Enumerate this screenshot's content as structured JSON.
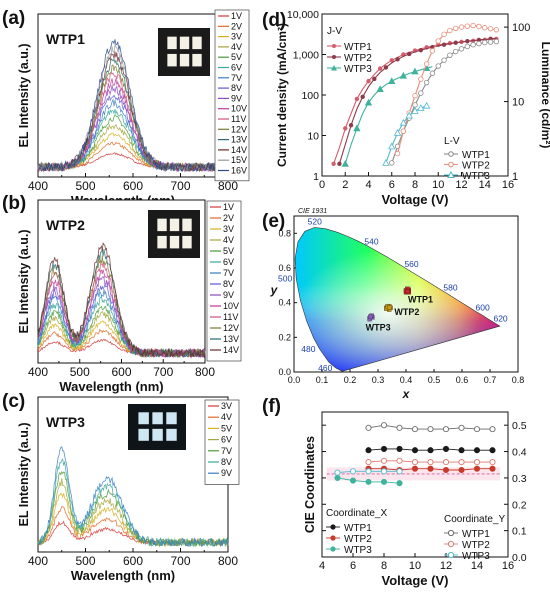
{
  "chart_data": [
    {
      "panel": "(a)",
      "name": "WTP1",
      "type": "line",
      "xlabel": "Wavelength (nm)",
      "ylabel": "EL Intensity (a.u.)",
      "xlim": [
        400,
        800
      ],
      "xticks": [
        400,
        500,
        600,
        700,
        800
      ],
      "series_names": [
        "1V",
        "2V",
        "3V",
        "4V",
        "5V",
        "6V",
        "7V",
        "8V",
        "9V",
        "10V",
        "11V",
        "12V",
        "13V",
        "14V",
        "15V",
        "16V"
      ],
      "peaks": [
        {
          "center": 560,
          "width": 48,
          "amp": 1.0
        }
      ],
      "has_inset_photo": true
    },
    {
      "panel": "(b)",
      "name": "WTP2",
      "type": "line",
      "xlabel": "Wavelength (nm)",
      "ylabel": "EL Intensity (a.u.)",
      "xlim": [
        400,
        800
      ],
      "xticks": [
        400,
        500,
        600,
        700,
        800
      ],
      "series_names": [
        "1V",
        "2V",
        "3V",
        "4V",
        "5V",
        "6V",
        "7V",
        "8V",
        "9V",
        "10V",
        "11V",
        "12V",
        "13V",
        "14V"
      ],
      "peaks": [
        {
          "center": 440,
          "width": 32,
          "amp": 0.75
        },
        {
          "center": 555,
          "width": 42,
          "amp": 0.85
        }
      ],
      "has_inset_photo": true
    },
    {
      "panel": "(c)",
      "name": "WTP3",
      "type": "line",
      "xlabel": "Wavelength (nm)",
      "ylabel": "EL Intensity (a.u.)",
      "xlim": [
        400,
        800
      ],
      "xticks": [
        400,
        500,
        600,
        700,
        800
      ],
      "series_names": [
        "3V",
        "4V",
        "5V",
        "6V",
        "7V",
        "8V",
        "9V"
      ],
      "peaks": [
        {
          "center": 450,
          "width": 22,
          "amp": 0.8
        },
        {
          "center": 545,
          "width": 45,
          "amp": 0.55
        }
      ],
      "has_inset_photo": true
    },
    {
      "panel": "(d)",
      "type": "line",
      "xlabel": "Voltage (V)",
      "ylabel": "Current density (mA/cm²)",
      "y2label": "Luminance (cd/m²)",
      "xlim": [
        0,
        16
      ],
      "xticks": [
        0,
        2,
        4,
        6,
        8,
        10,
        12,
        14,
        16
      ],
      "ylim": [
        1,
        10000
      ],
      "yscale": "log",
      "yticks": [
        "1",
        "10",
        "100",
        "1,000",
        "10,000"
      ],
      "y2lim": [
        1,
        150
      ],
      "y2scale": "log",
      "y2ticks": [
        "1",
        "10",
        "100"
      ],
      "legend_jv_title": "J-V",
      "legend_lv_title": "L-V",
      "series": [
        {
          "name": "WTP1",
          "group": "J-V",
          "color": "#d45d6a",
          "marker": "filled-circle",
          "axis": "left",
          "x": [
            1,
            1.5,
            2,
            2.5,
            3,
            3.5,
            4,
            4.5,
            5,
            5.5,
            6,
            6.5,
            7,
            7.5,
            8,
            8.5,
            9,
            9.5,
            10,
            10.5,
            11,
            11.5,
            12,
            12.5,
            13,
            13.5,
            14,
            14.5,
            15
          ],
          "y": [
            2,
            5,
            15,
            35,
            80,
            140,
            220,
            320,
            450,
            580,
            720,
            850,
            1000,
            1130,
            1250,
            1380,
            1500,
            1620,
            1730,
            1820,
            1900,
            1980,
            2050,
            2120,
            2180,
            2250,
            2310,
            2370,
            2420
          ]
        },
        {
          "name": "WTP2",
          "group": "J-V",
          "color": "#8e3a4a",
          "marker": "filled-circle",
          "axis": "left",
          "x": [
            1.5,
            2,
            2.5,
            3,
            3.5,
            4,
            4.5,
            5,
            5.5,
            6,
            6.5,
            7,
            7.5,
            8,
            8.5,
            9,
            9.5,
            10,
            10.5,
            11,
            11.5,
            12,
            12.5,
            13,
            13.5,
            14,
            14.5,
            15
          ],
          "y": [
            2,
            6,
            18,
            45,
            90,
            160,
            250,
            360,
            480,
            620,
            760,
            900,
            1030,
            1160,
            1280,
            1400,
            1520,
            1640,
            1750,
            1850,
            1950,
            2040,
            2130,
            2210,
            2290,
            2370,
            2440,
            2510
          ]
        },
        {
          "name": "WTP3",
          "group": "J-V",
          "color": "#3fb39c",
          "marker": "filled-triangle",
          "axis": "left",
          "x": [
            2,
            2.5,
            3,
            3.5,
            4,
            4.5,
            5,
            5.5,
            6,
            6.5,
            7,
            7.5,
            8,
            8.5,
            9,
            9.5
          ],
          "y": [
            2,
            6,
            15,
            35,
            65,
            100,
            140,
            180,
            220,
            260,
            300,
            340,
            380,
            420,
            460,
            500
          ]
        },
        {
          "name": "WTP1",
          "group": "L-V",
          "color": "#8a8a8a",
          "marker": "open-circle",
          "axis": "right",
          "x": [
            6,
            6.5,
            7,
            7.5,
            8,
            8.5,
            9,
            9.5,
            10,
            10.5,
            11,
            11.5,
            12,
            12.5,
            13,
            13.5,
            14,
            14.5,
            15
          ],
          "y": [
            1.5,
            2.5,
            4,
            6,
            9,
            13,
            18,
            24,
            30,
            36,
            42,
            47,
            51,
            55,
            58,
            60,
            62,
            63,
            64
          ]
        },
        {
          "name": "WTP2",
          "group": "L-V",
          "color": "#e8907c",
          "marker": "open-circle",
          "axis": "right",
          "x": [
            6.5,
            7,
            7.5,
            8,
            8.5,
            9,
            9.5,
            10,
            10.5,
            11,
            11.5,
            12,
            12.5,
            13,
            13.5,
            14,
            14.5,
            15
          ],
          "y": [
            2,
            4,
            7,
            12,
            20,
            32,
            48,
            65,
            80,
            90,
            96,
            100,
            103,
            105,
            102,
            98,
            95,
            92
          ]
        },
        {
          "name": "WTP3",
          "group": "L-V",
          "color": "#4fb9cf",
          "marker": "open-triangle",
          "axis": "right",
          "x": [
            5.5,
            6,
            6.5,
            7,
            7.5,
            8,
            8.5,
            9
          ],
          "y": [
            1.5,
            2.5,
            3.8,
            5.2,
            6.5,
            7.5,
            8.2,
            8.8
          ]
        }
      ]
    },
    {
      "panel": "(e)",
      "type": "scatter",
      "title": "CIE 1931",
      "xlabel": "x",
      "ylabel": "y",
      "xlim": [
        0,
        0.8
      ],
      "ylim": [
        0,
        0.9
      ],
      "xticks": [
        "0.0",
        "0.1",
        "0.2",
        "0.3",
        "0.4",
        "0.5",
        "0.6",
        "0.7",
        "0.8"
      ],
      "yticks": [
        "0.0",
        "0.2",
        "0.4",
        "0.6",
        "0.8"
      ],
      "wavelength_labels": [
        {
          "label": "460",
          "x": 0.144,
          "y": 0.03
        },
        {
          "label": "480",
          "x": 0.091,
          "y": 0.133
        },
        {
          "label": "500",
          "x": 0.008,
          "y": 0.538
        },
        {
          "label": "520",
          "x": 0.074,
          "y": 0.834
        },
        {
          "label": "540",
          "x": 0.23,
          "y": 0.754
        },
        {
          "label": "560",
          "x": 0.373,
          "y": 0.624
        },
        {
          "label": "580",
          "x": 0.512,
          "y": 0.487
        },
        {
          "label": "600",
          "x": 0.627,
          "y": 0.372
        },
        {
          "label": "620",
          "x": 0.691,
          "y": 0.308
        }
      ],
      "series": [
        {
          "name": "WTP1",
          "color": "#d0202a",
          "x": [
            0.4,
            0.41,
            0.405,
            0.41,
            0.4,
            0.41,
            0.405,
            0.4,
            0.41,
            0.405
          ],
          "y": [
            0.47,
            0.47,
            0.475,
            0.465,
            0.46,
            0.475,
            0.48,
            0.47,
            0.46,
            0.465
          ]
        },
        {
          "name": "WTP2",
          "color": "#c89a10",
          "x": [
            0.33,
            0.34,
            0.335,
            0.345,
            0.34,
            0.33,
            0.335,
            0.34
          ],
          "y": [
            0.37,
            0.38,
            0.375,
            0.37,
            0.36,
            0.365,
            0.38,
            0.372
          ]
        },
        {
          "name": "WTP3",
          "color": "#8a5cc0",
          "x": [
            0.27,
            0.275,
            0.28,
            0.27,
            0.278,
            0.272
          ],
          "y": [
            0.31,
            0.32,
            0.315,
            0.305,
            0.325,
            0.318
          ]
        }
      ]
    },
    {
      "panel": "(f)",
      "type": "line",
      "xlabel": "Voltage (V)",
      "ylabel": "CIE Coordinates",
      "xlim": [
        4,
        16
      ],
      "xticks": [
        4,
        6,
        8,
        10,
        12,
        14,
        16
      ],
      "ylim": [
        0,
        0.55
      ],
      "yticks": [
        "0.0",
        "0.1",
        "0.2",
        "0.3",
        "0.4",
        "0.5"
      ],
      "legend_x_title": "Coordinate_X",
      "legend_y_title": "Coordinate_Y",
      "series": [
        {
          "name": "WTP1",
          "coord": "X",
          "color": "#1a1a1a",
          "marker": "filled-circle",
          "x": [
            7,
            8,
            9,
            10,
            11,
            12,
            13,
            14,
            15
          ],
          "y": [
            0.405,
            0.41,
            0.41,
            0.405,
            0.405,
            0.41,
            0.405,
            0.405,
            0.405
          ]
        },
        {
          "name": "WTP2",
          "coord": "X",
          "color": "#c83a2a",
          "marker": "filled-circle",
          "x": [
            7,
            8,
            9,
            10,
            11,
            12,
            13,
            14,
            15
          ],
          "y": [
            0.335,
            0.335,
            0.33,
            0.335,
            0.335,
            0.33,
            0.33,
            0.335,
            0.335
          ]
        },
        {
          "name": "WTP3",
          "coord": "X",
          "color": "#3fb39c",
          "marker": "filled-circle",
          "x": [
            5,
            6,
            7,
            8,
            9
          ],
          "y": [
            0.3,
            0.29,
            0.285,
            0.285,
            0.28
          ]
        },
        {
          "name": "WTP1",
          "coord": "Y",
          "color": "#6a6a6a",
          "marker": "open-circle",
          "x": [
            7,
            8,
            9,
            10,
            11,
            12,
            13,
            14,
            15
          ],
          "y": [
            0.49,
            0.5,
            0.49,
            0.485,
            0.485,
            0.485,
            0.49,
            0.485,
            0.485
          ]
        },
        {
          "name": "WTP2",
          "coord": "Y",
          "color": "#e07a70",
          "marker": "open-circle",
          "x": [
            7,
            8,
            9,
            10,
            11,
            12,
            13,
            14,
            15
          ],
          "y": [
            0.36,
            0.365,
            0.365,
            0.36,
            0.36,
            0.36,
            0.36,
            0.36,
            0.36
          ]
        },
        {
          "name": "WTP3",
          "coord": "Y",
          "color": "#4fb9cf",
          "marker": "open-circle",
          "x": [
            5,
            6,
            7,
            8,
            9
          ],
          "y": [
            0.32,
            0.325,
            0.325,
            0.325,
            0.325
          ]
        }
      ]
    }
  ]
}
